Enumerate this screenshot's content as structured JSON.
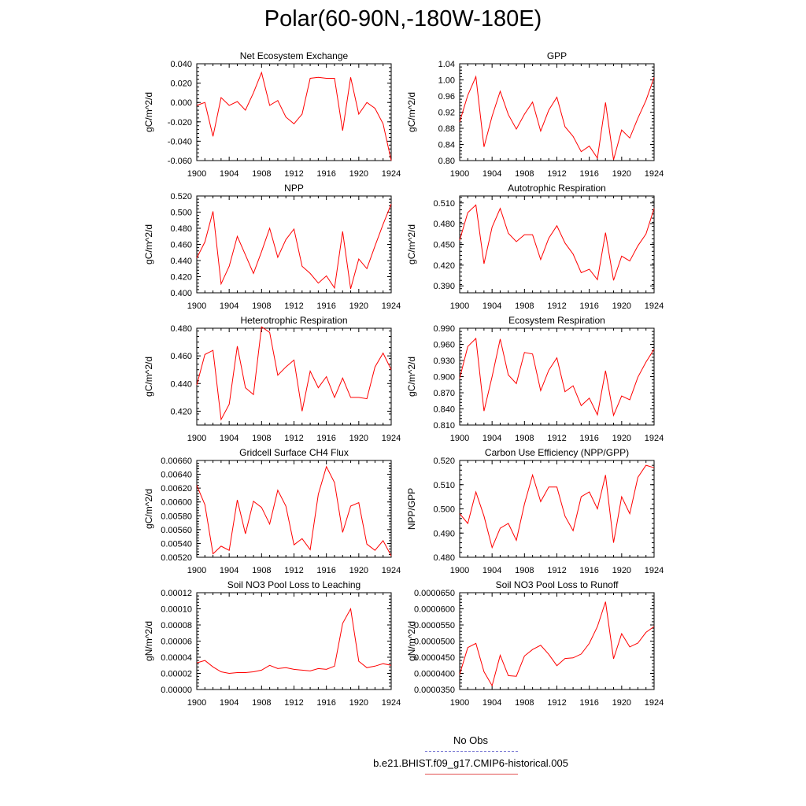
{
  "title": "Polar(60-90N,-180W-180E)",
  "colors": {
    "model": "#ff0000",
    "obs": "#6f6fd0",
    "axis": "#000000"
  },
  "legend": {
    "obs_label": "No Obs",
    "model_label": "b.e21.BHIST.f09_g17.CMIP6-historical.005"
  },
  "chart_data": [
    {
      "type": "line",
      "title": "Net Ecosystem Exchange",
      "ylabel": "gC/m^2/d",
      "x": [
        1900,
        1901,
        1902,
        1903,
        1904,
        1905,
        1906,
        1907,
        1908,
        1909,
        1910,
        1911,
        1912,
        1913,
        1914,
        1915,
        1916,
        1917,
        1918,
        1919,
        1920,
        1921,
        1922,
        1923,
        1924
      ],
      "values": [
        -0.003,
        0.0,
        -0.035,
        0.005,
        -0.003,
        0.001,
        -0.008,
        0.01,
        0.031,
        -0.003,
        0.002,
        -0.015,
        -0.022,
        -0.012,
        0.025,
        0.026,
        0.025,
        0.025,
        -0.029,
        0.026,
        -0.012,
        0.0,
        -0.006,
        -0.022,
        -0.06
      ],
      "xlim": [
        1900,
        1924
      ],
      "ylim": [
        -0.06,
        0.04
      ],
      "xticks": [
        "1900",
        "1904",
        "1908",
        "1912",
        "1916",
        "1920",
        "1924"
      ],
      "yticks": [
        "-0.060",
        "-0.040",
        "-0.020",
        "0.000",
        "0.020",
        "0.040"
      ]
    },
    {
      "type": "line",
      "title": "GPP",
      "ylabel": "gC/m^2/d",
      "x": [
        1900,
        1901,
        1902,
        1903,
        1904,
        1905,
        1906,
        1907,
        1908,
        1909,
        1910,
        1911,
        1912,
        1913,
        1914,
        1915,
        1916,
        1917,
        1918,
        1919,
        1920,
        1921,
        1922,
        1923,
        1924
      ],
      "values": [
        0.896,
        0.962,
        1.008,
        0.834,
        0.91,
        0.972,
        0.914,
        0.878,
        0.915,
        0.945,
        0.873,
        0.925,
        0.957,
        0.884,
        0.86,
        0.822,
        0.836,
        0.806,
        0.944,
        0.802,
        0.876,
        0.856,
        0.905,
        0.949,
        1.006
      ],
      "xlim": [
        1900,
        1924
      ],
      "ylim": [
        0.8,
        1.04
      ],
      "xticks": [
        "1900",
        "1904",
        "1908",
        "1912",
        "1916",
        "1920",
        "1924"
      ],
      "yticks": [
        "0.80",
        "0.84",
        "0.88",
        "0.92",
        "0.96",
        "1.00",
        "1.04"
      ]
    },
    {
      "type": "line",
      "title": "NPP",
      "ylabel": "gC/m^2/d",
      "x": [
        1900,
        1901,
        1902,
        1903,
        1904,
        1905,
        1906,
        1907,
        1908,
        1909,
        1910,
        1911,
        1912,
        1913,
        1914,
        1915,
        1916,
        1917,
        1918,
        1919,
        1920,
        1921,
        1922,
        1923,
        1924
      ],
      "values": [
        0.443,
        0.463,
        0.501,
        0.411,
        0.433,
        0.47,
        0.447,
        0.424,
        0.451,
        0.48,
        0.444,
        0.466,
        0.479,
        0.433,
        0.424,
        0.412,
        0.421,
        0.406,
        0.476,
        0.405,
        0.442,
        0.43,
        0.458,
        0.485,
        0.51
      ],
      "xlim": [
        1900,
        1924
      ],
      "ylim": [
        0.4,
        0.52
      ],
      "xticks": [
        "1900",
        "1904",
        "1908",
        "1912",
        "1916",
        "1920",
        "1924"
      ],
      "yticks": [
        "0.400",
        "0.420",
        "0.440",
        "0.460",
        "0.480",
        "0.500",
        "0.520"
      ]
    },
    {
      "type": "line",
      "title": "Autotrophic Respiration",
      "ylabel": "gC/m^2/d",
      "x": [
        1900,
        1901,
        1902,
        1903,
        1904,
        1905,
        1906,
        1907,
        1908,
        1909,
        1910,
        1911,
        1912,
        1913,
        1914,
        1915,
        1916,
        1917,
        1918,
        1919,
        1920,
        1921,
        1922,
        1923,
        1924
      ],
      "values": [
        0.456,
        0.496,
        0.507,
        0.422,
        0.475,
        0.502,
        0.466,
        0.454,
        0.464,
        0.464,
        0.428,
        0.459,
        0.477,
        0.452,
        0.436,
        0.409,
        0.414,
        0.399,
        0.467,
        0.398,
        0.433,
        0.426,
        0.448,
        0.465,
        0.502
      ],
      "xlim": [
        1900,
        1924
      ],
      "ylim": [
        0.38,
        0.52
      ],
      "xticks": [
        "1900",
        "1904",
        "1908",
        "1912",
        "1916",
        "1920",
        "1924"
      ],
      "yticks": [
        "0.390",
        "0.420",
        "0.450",
        "0.480",
        "0.510"
      ]
    },
    {
      "type": "line",
      "title": "Heterotrophic Respiration",
      "ylabel": "gC/m^2/d",
      "x": [
        1900,
        1901,
        1902,
        1903,
        1904,
        1905,
        1906,
        1907,
        1908,
        1909,
        1910,
        1911,
        1912,
        1913,
        1914,
        1915,
        1916,
        1917,
        1918,
        1919,
        1920,
        1921,
        1922,
        1923,
        1924
      ],
      "values": [
        0.439,
        0.461,
        0.464,
        0.414,
        0.425,
        0.467,
        0.437,
        0.432,
        0.481,
        0.477,
        0.446,
        0.452,
        0.457,
        0.42,
        0.449,
        0.437,
        0.445,
        0.43,
        0.444,
        0.43,
        0.43,
        0.429,
        0.452,
        0.462,
        0.45
      ],
      "xlim": [
        1900,
        1924
      ],
      "ylim": [
        0.41,
        0.48
      ],
      "xticks": [
        "1900",
        "1904",
        "1908",
        "1912",
        "1916",
        "1920",
        "1924"
      ],
      "yticks": [
        "0.420",
        "0.440",
        "0.460",
        "0.480"
      ]
    },
    {
      "type": "line",
      "title": "Ecosystem Respiration",
      "ylabel": "gC/m^2/d",
      "x": [
        1900,
        1901,
        1902,
        1903,
        1904,
        1905,
        1906,
        1907,
        1908,
        1909,
        1910,
        1911,
        1912,
        1913,
        1914,
        1915,
        1916,
        1917,
        1918,
        1919,
        1920,
        1921,
        1922,
        1923,
        1924
      ],
      "values": [
        0.897,
        0.956,
        0.971,
        0.836,
        0.9,
        0.97,
        0.903,
        0.887,
        0.945,
        0.942,
        0.874,
        0.912,
        0.935,
        0.872,
        0.883,
        0.846,
        0.86,
        0.829,
        0.911,
        0.828,
        0.864,
        0.857,
        0.899,
        0.927,
        0.951
      ],
      "xlim": [
        1900,
        1924
      ],
      "ylim": [
        0.81,
        0.99
      ],
      "xticks": [
        "1900",
        "1904",
        "1908",
        "1912",
        "1916",
        "1920",
        "1924"
      ],
      "yticks": [
        "0.810",
        "0.840",
        "0.870",
        "0.900",
        "0.930",
        "0.960",
        "0.990"
      ]
    },
    {
      "type": "line",
      "title": "Gridcell Surface CH4 Flux",
      "ylabel": "gC/m^2/d",
      "x": [
        1900,
        1901,
        1902,
        1903,
        1904,
        1905,
        1906,
        1907,
        1908,
        1909,
        1910,
        1911,
        1912,
        1913,
        1914,
        1915,
        1916,
        1917,
        1918,
        1919,
        1920,
        1921,
        1922,
        1923,
        1924
      ],
      "values": [
        0.00624,
        0.00596,
        0.00525,
        0.00536,
        0.0053,
        0.00603,
        0.00554,
        0.00601,
        0.00592,
        0.00568,
        0.00617,
        0.00594,
        0.00538,
        0.00547,
        0.00531,
        0.00611,
        0.00651,
        0.00628,
        0.00556,
        0.00594,
        0.00599,
        0.00539,
        0.0053,
        0.00544,
        0.00522
      ],
      "xlim": [
        1900,
        1924
      ],
      "ylim": [
        0.0052,
        0.0066
      ],
      "xticks": [
        "1900",
        "1904",
        "1908",
        "1912",
        "1916",
        "1920",
        "1924"
      ],
      "yticks": [
        "0.00520",
        "0.00540",
        "0.00560",
        "0.00580",
        "0.00600",
        "0.00620",
        "0.00640",
        "0.00660"
      ]
    },
    {
      "type": "line",
      "title": "Carbon Use Efficiency (NPP/GPP)",
      "ylabel": "NPP/GPP",
      "x": [
        1900,
        1901,
        1902,
        1903,
        1904,
        1905,
        1906,
        1907,
        1908,
        1909,
        1910,
        1911,
        1912,
        1913,
        1914,
        1915,
        1916,
        1917,
        1918,
        1919,
        1920,
        1921,
        1922,
        1923,
        1924
      ],
      "values": [
        0.498,
        0.494,
        0.507,
        0.497,
        0.484,
        0.492,
        0.494,
        0.487,
        0.502,
        0.514,
        0.503,
        0.509,
        0.509,
        0.497,
        0.491,
        0.505,
        0.507,
        0.5,
        0.514,
        0.486,
        0.505,
        0.498,
        0.513,
        0.518,
        0.517
      ],
      "xlim": [
        1900,
        1924
      ],
      "ylim": [
        0.48,
        0.52
      ],
      "xticks": [
        "1900",
        "1904",
        "1908",
        "1912",
        "1916",
        "1920",
        "1924"
      ],
      "yticks": [
        "0.480",
        "0.490",
        "0.500",
        "0.510",
        "0.520"
      ]
    },
    {
      "type": "line",
      "title": "Soil NO3 Pool Loss to Leaching",
      "ylabel": "gN/m^2/d",
      "x": [
        1900,
        1901,
        1902,
        1903,
        1904,
        1905,
        1906,
        1907,
        1908,
        1909,
        1910,
        1911,
        1912,
        1913,
        1914,
        1915,
        1916,
        1917,
        1918,
        1919,
        1920,
        1921,
        1922,
        1923,
        1924
      ],
      "values": [
        3.3e-05,
        3.6e-05,
        2.8e-05,
        2.2e-05,
        2e-05,
        2.1e-05,
        2.1e-05,
        2.2e-05,
        2.4e-05,
        3e-05,
        2.6e-05,
        2.7e-05,
        2.5e-05,
        2.4e-05,
        2.3e-05,
        2.6e-05,
        2.5e-05,
        2.9e-05,
        8.2e-05,
        0.0001,
        3.5e-05,
        2.7e-05,
        2.9e-05,
        3.2e-05,
        3e-05
      ],
      "xlim": [
        1900,
        1924
      ],
      "ylim": [
        0,
        0.00012
      ],
      "xticks": [
        "1900",
        "1904",
        "1908",
        "1912",
        "1916",
        "1920",
        "1924"
      ],
      "yticks": [
        "0.00000",
        "0.00002",
        "0.00004",
        "0.00006",
        "0.00008",
        "0.00010",
        "0.00012"
      ]
    },
    {
      "type": "line",
      "title": "Soil NO3 Pool Loss to Runoff",
      "ylabel": "gN/m^2/d",
      "x": [
        1900,
        1901,
        1902,
        1903,
        1904,
        1905,
        1906,
        1907,
        1908,
        1909,
        1910,
        1911,
        1912,
        1913,
        1914,
        1915,
        1916,
        1917,
        1918,
        1919,
        1920,
        1921,
        1922,
        1923,
        1924
      ],
      "values": [
        3.97e-05,
        4.8e-05,
        4.93e-05,
        4.05e-05,
        3.62e-05,
        4.56e-05,
        3.93e-05,
        3.91e-05,
        4.54e-05,
        4.74e-05,
        4.87e-05,
        4.59e-05,
        4.24e-05,
        4.46e-05,
        4.48e-05,
        4.6e-05,
        4.93e-05,
        5.45e-05,
        6.22e-05,
        4.45e-05,
        5.23e-05,
        4.82e-05,
        4.94e-05,
        5.27e-05,
        5.45e-05
      ],
      "xlim": [
        1900,
        1924
      ],
      "ylim": [
        3.5e-05,
        6.5e-05
      ],
      "xticks": [
        "1900",
        "1904",
        "1908",
        "1912",
        "1916",
        "1920",
        "1924"
      ],
      "yticks": [
        "0.0000350",
        "0.0000400",
        "0.0000450",
        "0.0000500",
        "0.0000550",
        "0.0000600",
        "0.0000650"
      ]
    }
  ]
}
